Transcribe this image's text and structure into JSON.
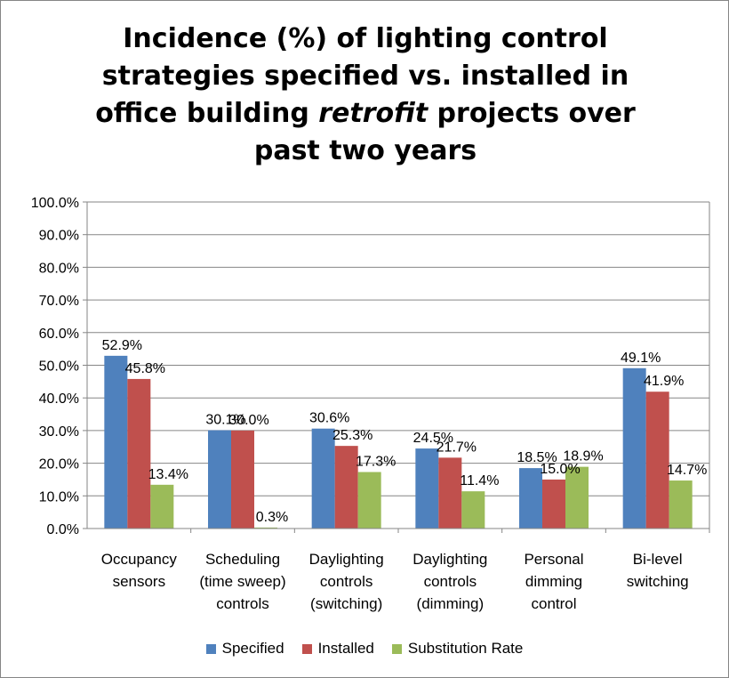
{
  "chart_data": {
    "type": "bar",
    "title_parts": {
      "before": "Incidence (%) of lighting control strategies specified vs. installed in office building ",
      "emphasis": "retrofit",
      "after": " projects over past two years"
    },
    "categories": [
      [
        "Occupancy",
        "sensors"
      ],
      [
        "Scheduling",
        "(time sweep)",
        "controls"
      ],
      [
        "Daylighting",
        "controls",
        "(switching)"
      ],
      [
        "Daylighting",
        "controls",
        "(dimming)"
      ],
      [
        "Personal",
        "dimming",
        "control"
      ],
      [
        "Bi-level",
        "switching"
      ]
    ],
    "series": [
      {
        "name": "Specified",
        "color": "#4f81bd",
        "values": [
          52.9,
          30.1,
          30.6,
          24.5,
          18.5,
          49.1
        ],
        "labels": [
          "52.9%",
          "30.1%",
          "30.6%",
          "24.5%",
          "18.5%",
          "49.1%"
        ]
      },
      {
        "name": "Installed",
        "color": "#c0504d",
        "values": [
          45.8,
          30.0,
          25.3,
          21.7,
          15.0,
          41.9
        ],
        "labels": [
          "45.8%",
          "30.0%",
          "25.3%",
          "21.7%",
          "15.0%",
          "41.9%"
        ]
      },
      {
        "name": "Substitution Rate",
        "color": "#9bbb59",
        "values": [
          13.4,
          0.3,
          17.3,
          11.4,
          18.9,
          14.7
        ],
        "labels": [
          "13.4%",
          "0.3%",
          "17.3%",
          "11.4%",
          "18.9%",
          "14.7%"
        ]
      }
    ],
    "y_ticks": [
      "0.0%",
      "10.0%",
      "20.0%",
      "30.0%",
      "40.0%",
      "50.0%",
      "60.0%",
      "70.0%",
      "80.0%",
      "90.0%",
      "100.0%"
    ],
    "ylim": [
      0,
      100
    ],
    "grid": true,
    "legend_position": "bottom",
    "gridline_color": "#868686"
  }
}
